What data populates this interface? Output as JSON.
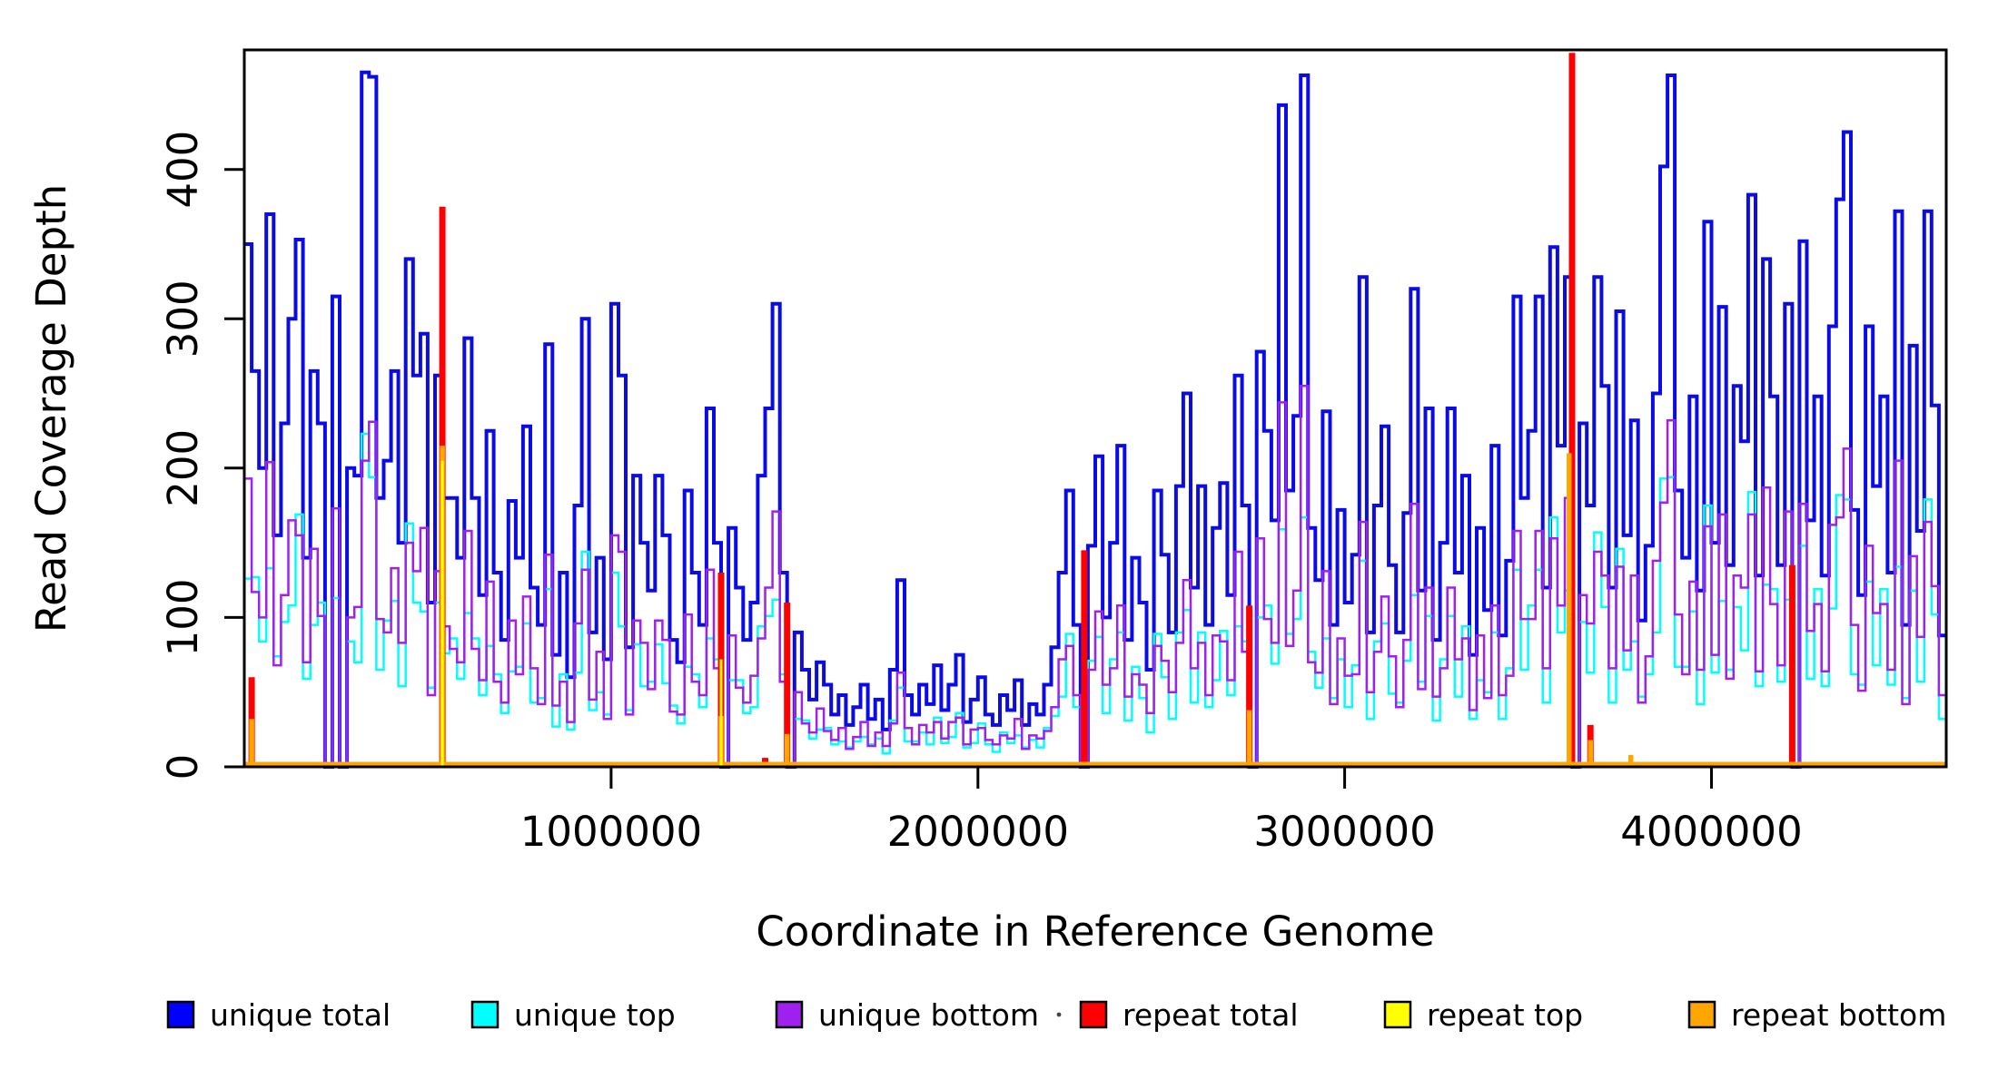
{
  "y_axis": {
    "label": "Read Coverage Depth",
    "ticks": [
      0,
      100,
      200,
      300,
      400
    ]
  },
  "x_axis": {
    "label": "Coordinate in Reference Genome",
    "ticks": [
      1000000,
      2000000,
      3000000,
      4000000
    ],
    "tick_labels": [
      "1000000",
      "2000000",
      "3000000",
      "4000000"
    ]
  },
  "legend": [
    {
      "label": "unique total",
      "color": "#0000ff"
    },
    {
      "label": "unique top",
      "color": "#00ffff"
    },
    {
      "label": "unique bottom",
      "color": "#a020f0"
    },
    {
      "label": "repeat total",
      "color": "#ff0000"
    },
    {
      "label": "repeat top",
      "color": "#ffff00"
    },
    {
      "label": "repeat bottom",
      "color": "#ffa500"
    }
  ],
  "chart_data": {
    "type": "line",
    "subtype": "step-coverage",
    "title": "",
    "xlabel": "Coordinate in Reference Genome",
    "ylabel": "Read Coverage Depth",
    "bin_size": 20000,
    "x_range": [
      0,
      4640000
    ],
    "y_range": [
      0,
      480
    ],
    "grid": false,
    "legend_position": "bottom",
    "series": [
      {
        "name": "unique total",
        "color": "#0b0be8",
        "width": 4,
        "values": [
          350,
          265,
          200,
          370,
          155,
          230,
          300,
          353,
          140,
          265,
          230,
          0,
          315,
          0,
          200,
          195,
          465,
          462,
          180,
          205,
          265,
          150,
          340,
          262,
          290,
          110,
          262,
          180,
          180,
          140,
          287,
          180,
          115,
          225,
          130,
          85,
          178,
          140,
          228,
          120,
          95,
          283,
          75,
          130,
          60,
          175,
          300,
          90,
          140,
          72,
          310,
          262,
          80,
          195,
          150,
          118,
          195,
          155,
          85,
          70,
          185,
          130,
          95,
          240,
          150,
          0,
          160,
          120,
          85,
          110,
          195,
          240,
          310,
          130,
          0,
          90,
          65,
          45,
          70,
          55,
          35,
          48,
          28,
          40,
          55,
          32,
          45,
          25,
          65,
          125,
          48,
          35,
          55,
          42,
          68,
          38,
          55,
          75,
          30,
          45,
          60,
          35,
          28,
          48,
          38,
          58,
          28,
          42,
          35,
          55,
          80,
          130,
          185,
          95,
          0,
          148,
          208,
          100,
          150,
          215,
          85,
          140,
          110,
          65,
          185,
          142,
          90,
          188,
          250,
          120,
          188,
          95,
          160,
          190,
          115,
          262,
          175,
          0,
          278,
          225,
          165,
          443,
          185,
          235,
          463,
          160,
          125,
          238,
          95,
          172,
          110,
          142,
          328,
          90,
          175,
          228,
          135,
          90,
          170,
          320,
          118,
          240,
          85,
          150,
          240,
          130,
          195,
          75,
          160,
          105,
          215,
          88,
          138,
          315,
          180,
          225,
          315,
          120,
          348,
          215,
          328,
          0,
          230,
          175,
          328,
          255,
          120,
          305,
          155,
          232,
          98,
          148,
          250,
          402,
          463,
          185,
          140,
          248,
          118,
          365,
          150,
          308,
          135,
          255,
          218,
          383,
          128,
          340,
          248,
          135,
          310,
          0,
          352,
          165,
          248,
          128,
          295,
          380,
          425,
          172,
          115,
          295,
          188,
          248,
          130,
          372,
          95,
          282,
          158,
          372,
          242,
          88
        ]
      },
      {
        "name": "unique top",
        "color": "#00ffff",
        "width": 2.5,
        "values": [
          126,
          127,
          84,
          133,
          74,
          97,
          108,
          169,
          59,
          95,
          110,
          0,
          113,
          0,
          84,
          70,
          223,
          194,
          65,
          98,
          111,
          54,
          163,
          110,
          104,
          53,
          110,
          76,
          86,
          59,
          103,
          86,
          48,
          81,
          62,
          36,
          64,
          67,
          96,
          43,
          46,
          119,
          27,
          62,
          25,
          63,
          144,
          38,
          50,
          35,
          130,
          94,
          38,
          82,
          54,
          57,
          82,
          56,
          41,
          29,
          67,
          62,
          40,
          86,
          72,
          0,
          58,
          58,
          36,
          40,
          94,
          101,
          112,
          62,
          0,
          32,
          31,
          19,
          25,
          26,
          15,
          17,
          13,
          17,
          20,
          15,
          19,
          9,
          31,
          53,
          17,
          17,
          23,
          15,
          33,
          16,
          20,
          36,
          13,
          16,
          29,
          15,
          10,
          23,
          16,
          21,
          13,
          18,
          13,
          26,
          34,
          47,
          89,
          40,
          0,
          71,
          87,
          36,
          72,
          90,
          31,
          67,
          46,
          23,
          89,
          60,
          32,
          90,
          105,
          43,
          90,
          40,
          58,
          91,
          48,
          94,
          84,
          0,
          100,
          108,
          69,
          159,
          89,
          99,
          167,
          77,
          53,
          86,
          46,
          72,
          40,
          68,
          138,
          32,
          84,
          96,
          49,
          43,
          71,
          115,
          57,
          101,
          31,
          72,
          101,
          47,
          94,
          32,
          58,
          50,
          90,
          32,
          66,
          132,
          65,
          108,
          132,
          43,
          167,
          90,
          118,
          0,
          97,
          63,
          157,
          107,
          43,
          146,
          65,
          84,
          47,
          62,
          90,
          193,
          194,
          67,
          67,
          104,
          42,
          175,
          63,
          111,
          65,
          107,
          78,
          184,
          54,
          122,
          119,
          57,
          112,
          0,
          148,
          59,
          119,
          54,
          106,
          182,
          179,
          62,
          55,
          124,
          68,
          119,
          55,
          134,
          46,
          118,
          57,
          179,
          102,
          32
        ]
      },
      {
        "name": "unique bottom",
        "color": "#a020f0",
        "width": 2.5,
        "values": [
          193,
          117,
          100,
          204,
          68,
          115,
          165,
          155,
          70,
          146,
          101,
          0,
          173,
          0,
          100,
          107,
          205,
          231,
          99,
          90,
          133,
          83,
          150,
          131,
          160,
          48,
          131,
          94,
          79,
          70,
          158,
          79,
          58,
          124,
          57,
          43,
          98,
          62,
          114,
          66,
          42,
          142,
          41,
          57,
          30,
          96,
          132,
          45,
          77,
          32,
          155,
          144,
          35,
          98,
          83,
          52,
          98,
          85,
          37,
          35,
          102,
          57,
          48,
          132,
          66,
          0,
          88,
          53,
          43,
          61,
          86,
          120,
          171,
          57,
          0,
          50,
          29,
          23,
          39,
          24,
          18,
          26,
          12,
          20,
          30,
          14,
          23,
          14,
          29,
          63,
          26,
          15,
          28,
          23,
          30,
          19,
          30,
          33,
          15,
          25,
          26,
          18,
          15,
          21,
          19,
          32,
          12,
          21,
          19,
          24,
          40,
          72,
          81,
          48,
          0,
          65,
          104,
          55,
          66,
          108,
          47,
          62,
          55,
          36,
          81,
          71,
          50,
          83,
          125,
          66,
          83,
          48,
          88,
          84,
          58,
          144,
          77,
          0,
          153,
          99,
          83,
          244,
          81,
          118,
          255,
          70,
          63,
          131,
          42,
          86,
          61,
          62,
          164,
          50,
          77,
          114,
          74,
          40,
          85,
          176,
          52,
          120,
          47,
          66,
          120,
          72,
          86,
          38,
          88,
          46,
          108,
          48,
          61,
          158,
          99,
          99,
          158,
          66,
          153,
          108,
          180,
          0,
          115,
          96,
          144,
          128,
          66,
          134,
          78,
          128,
          43,
          74,
          138,
          177,
          232,
          102,
          62,
          124,
          65,
          161,
          75,
          169,
          59,
          128,
          120,
          169,
          64,
          187,
          109,
          68,
          171,
          0,
          176,
          91,
          109,
          64,
          162,
          167,
          213,
          95,
          51,
          148,
          103,
          109,
          65,
          205,
          42,
          141,
          87,
          164,
          121,
          48
        ]
      }
    ],
    "spike_series": [
      {
        "name": "repeat total",
        "color": "#ff0000",
        "width": 7,
        "points": [
          {
            "x": 20000,
            "v": 60
          },
          {
            "x": 540000,
            "v": 375
          },
          {
            "x": 1300000,
            "v": 130
          },
          {
            "x": 1420000,
            "v": 6
          },
          {
            "x": 1480000,
            "v": 110
          },
          {
            "x": 2290000,
            "v": 145
          },
          {
            "x": 2740000,
            "v": 108
          },
          {
            "x": 3620000,
            "v": 478
          },
          {
            "x": 3670000,
            "v": 28
          },
          {
            "x": 4220000,
            "v": 135
          }
        ]
      },
      {
        "name": "repeat bottom",
        "color": "#ffa500",
        "width": 5.5,
        "baseline": 2,
        "points": [
          {
            "x": 20000,
            "v": 32
          },
          {
            "x": 540000,
            "v": 215
          },
          {
            "x": 1300000,
            "v": 34
          },
          {
            "x": 1480000,
            "v": 22
          },
          {
            "x": 2740000,
            "v": 38
          },
          {
            "x": 3612000,
            "v": 210
          },
          {
            "x": 3670000,
            "v": 18
          },
          {
            "x": 3780000,
            "v": 8
          }
        ]
      },
      {
        "name": "repeat top",
        "color": "#ffff00",
        "width": 3,
        "points": [
          {
            "x": 540000,
            "v": 205
          },
          {
            "x": 1300000,
            "v": 72
          }
        ]
      }
    ]
  }
}
